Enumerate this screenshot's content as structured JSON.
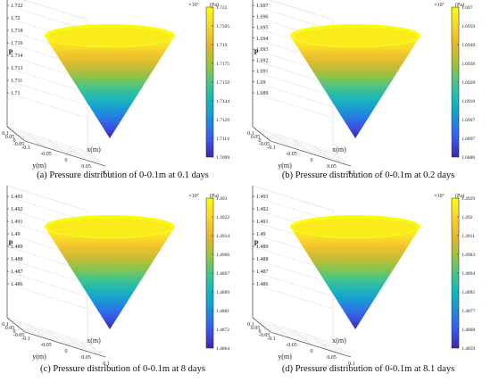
{
  "figure": {
    "captions": [
      "(a) Pressure distribution of 0-0.1m at 0.1 days",
      "(b) Pressure distribution of 0-0.1m at 0.2 days",
      "(c) Pressure distribution of 0-0.1m at 8 days",
      "(d) Pressure distribution of 0-0.1m at 8.1 days"
    ]
  },
  "chart_data": [
    {
      "type": "surface",
      "surface_shape": "inverted cone",
      "caption": "(a) Pressure distribution of 0-0.1m at 0.1 days",
      "xlabel": "x(m)",
      "ylabel": "y(m)",
      "zlabel": "P",
      "multiplier": "×10⁷",
      "unit": "(Pa)",
      "x_ticks": [
        "-0.1",
        "-0.05",
        "0",
        "0.05",
        "0.1"
      ],
      "y_ticks": [
        "0.1",
        "0.05",
        "0",
        "-0.05",
        "-0.1"
      ],
      "z_ticks": [
        "1.722",
        "1.72",
        "1.718",
        "1.716",
        "1.714",
        "1.713",
        "1.711",
        "1.71"
      ],
      "colorbar_ticks": [
        "1.722",
        "1.7205",
        "1.719",
        "1.7175",
        "1.7159",
        "1.7144",
        "1.7129",
        "1.7114",
        "1.7099"
      ],
      "zlim": [
        1.7099,
        1.722
      ]
    },
    {
      "type": "surface",
      "surface_shape": "inverted cone",
      "caption": "(b) Pressure distribution of 0-0.1m at 0.2 days",
      "xlabel": "x(m)",
      "ylabel": "y(m)",
      "zlabel": "P",
      "multiplier": "×10⁷",
      "unit": "(Pa)",
      "x_ticks": [
        "-0.1",
        "-0.05",
        "0",
        "0.05",
        "0.1"
      ],
      "y_ticks": [
        "0.1",
        "0.05",
        "0",
        "-0.05",
        "-0.1"
      ],
      "z_ticks": [
        "1.697",
        "1.696",
        "1.695",
        "1.694",
        "1.693",
        "1.692",
        "1.691",
        "1.69",
        "1.689"
      ],
      "colorbar_ticks": [
        "1.697",
        "1.6949",
        "1.6928",
        "1.6907",
        "1.6886"
      ],
      "colorbar_minor_ticks": [
        "1.6959",
        "1.6938",
        "1.6918",
        "1.6897"
      ],
      "zlim": [
        1.6886,
        1.697
      ]
    },
    {
      "type": "surface",
      "surface_shape": "inverted cone",
      "caption": "(c) Pressure distribution of 0-0.1m at 8 days",
      "xlabel": "x(m)",
      "ylabel": "y(m)",
      "zlabel": "P",
      "multiplier": "×10⁷",
      "unit": "(Pa)",
      "x_ticks": [
        "-0.1",
        "-0.05",
        "0",
        "0.05",
        "0.1"
      ],
      "y_ticks": [
        "0.1",
        "0.05",
        "0",
        "-0.05",
        "-0.1"
      ],
      "z_ticks": [
        "1.493",
        "1.492",
        "1.491",
        "1.49",
        "1.489",
        "1.488",
        "1.487",
        "1.486"
      ],
      "colorbar_ticks": [
        "1.493",
        "1.4922",
        "1.4914",
        "1.4906",
        "1.4897",
        "1.4889",
        "1.4881",
        "1.4872",
        "1.4864"
      ],
      "zlim": [
        1.4864,
        1.493
      ]
    },
    {
      "type": "surface",
      "surface_shape": "inverted cone",
      "caption": "(d) Pressure distribution of 0-0.1m at 8.1 days",
      "xlabel": "x(m)",
      "ylabel": "y(m)",
      "zlabel": "P",
      "multiplier": "×10⁷",
      "unit": "(Pa)",
      "x_ticks": [
        "-0.1",
        "-0.05",
        "0",
        "0.05",
        "0.1"
      ],
      "y_ticks": [
        "0.1",
        "0.05",
        "0",
        "-0.05",
        "-0.1"
      ],
      "z_ticks": [
        "1.493",
        "1.492",
        "1.491",
        "1.49",
        "1.489",
        "1.488",
        "1.487",
        "1.486"
      ],
      "colorbar_ticks": [
        "1.4929",
        "1.492",
        "1.4911",
        "1.4903",
        "1.4894",
        "1.4885",
        "1.4877",
        "1.4868",
        "1.4859"
      ],
      "zlim": [
        1.4859,
        1.4929
      ]
    }
  ],
  "colors": {
    "colormap": [
      "#3e26a8",
      "#3a59f2",
      "#1a8fd9",
      "#14b6bf",
      "#49c487",
      "#9fc33a",
      "#e7b62e",
      "#fcd52c",
      "#f9fb0e"
    ],
    "grid": "#d9d9d9",
    "axis": "#262626"
  }
}
